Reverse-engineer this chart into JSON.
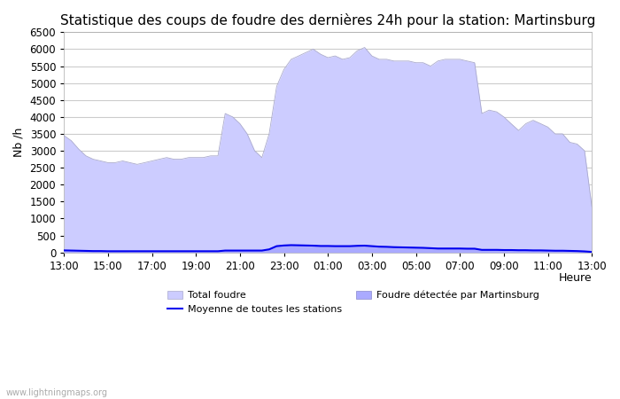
{
  "title": "Statistique des coups de foudre des dernières 24h pour la station: Martinsburg",
  "ylabel": "Nb /h",
  "xlabel": "Heure",
  "watermark": "www.lightningmaps.org",
  "xlim": [
    0,
    24
  ],
  "ylim": [
    0,
    6500
  ],
  "yticks": [
    0,
    500,
    1000,
    1500,
    2000,
    2500,
    3000,
    3500,
    4000,
    4500,
    5000,
    5500,
    6000,
    6500
  ],
  "xtick_labels": [
    "13:00",
    "15:00",
    "17:00",
    "19:00",
    "21:00",
    "23:00",
    "01:00",
    "03:00",
    "05:00",
    "07:00",
    "09:00",
    "11:00",
    "13:00"
  ],
  "xtick_positions": [
    0,
    2,
    4,
    6,
    8,
    10,
    12,
    14,
    16,
    18,
    20,
    22,
    24
  ],
  "total_foudre_color": "#ccccff",
  "total_foudre_edge": "#aaaacc",
  "martinsburg_color": "#aaaaff",
  "martinsburg_edge": "#aaaaff",
  "moyenne_color": "#0000ee",
  "background_color": "#ffffff",
  "grid_color": "#cccccc",
  "title_fontsize": 11,
  "axis_fontsize": 9,
  "tick_fontsize": 8.5,
  "x_total": [
    0,
    0.33,
    0.67,
    1.0,
    1.33,
    1.67,
    2.0,
    2.33,
    2.67,
    3.0,
    3.33,
    3.67,
    4.0,
    4.33,
    4.67,
    5.0,
    5.33,
    5.67,
    6.0,
    6.33,
    6.67,
    7.0,
    7.33,
    7.67,
    8.0,
    8.33,
    8.67,
    9.0,
    9.33,
    9.67,
    10.0,
    10.33,
    10.67,
    11.0,
    11.33,
    11.67,
    12.0,
    12.33,
    12.67,
    13.0,
    13.33,
    13.67,
    14.0,
    14.33,
    14.67,
    15.0,
    15.33,
    15.67,
    16.0,
    16.33,
    16.67,
    17.0,
    17.33,
    17.67,
    18.0,
    18.33,
    18.67,
    19.0,
    19.33,
    19.67,
    20.0,
    20.33,
    20.67,
    21.0,
    21.33,
    21.67,
    22.0,
    22.33,
    22.67,
    23.0,
    23.33,
    23.67,
    24.0
  ],
  "y_total": [
    3450,
    3300,
    3050,
    2850,
    2750,
    2700,
    2650,
    2650,
    2700,
    2650,
    2600,
    2650,
    2700,
    2750,
    2800,
    2750,
    2750,
    2800,
    2800,
    2800,
    2850,
    2850,
    4100,
    4000,
    3800,
    3500,
    3000,
    2800,
    3500,
    4900,
    5400,
    5700,
    5800,
    5900,
    6000,
    5850,
    5750,
    5800,
    5700,
    5750,
    5950,
    6050,
    5800,
    5700,
    5700,
    5650,
    5650,
    5650,
    5600,
    5600,
    5500,
    5650,
    5700,
    5700,
    5700,
    5650,
    5600,
    4100,
    4200,
    4150,
    4000,
    3800,
    3600,
    3800,
    3900,
    3800,
    3700,
    3500,
    3500,
    3250,
    3200,
    3000,
    1350
  ],
  "y_martinsburg": [
    50,
    45,
    40,
    35,
    30,
    30,
    30,
    30,
    30,
    25,
    25,
    25,
    25,
    25,
    25,
    25,
    25,
    25,
    25,
    25,
    25,
    25,
    60,
    60,
    60,
    55,
    55,
    55,
    100,
    200,
    220,
    230,
    225,
    220,
    215,
    200,
    200,
    195,
    195,
    195,
    210,
    215,
    200,
    185,
    180,
    170,
    165,
    160,
    155,
    150,
    140,
    125,
    130,
    130,
    130,
    125,
    125,
    80,
    85,
    80,
    80,
    75,
    70,
    75,
    70,
    65,
    60,
    55,
    55,
    50,
    45,
    35,
    15
  ],
  "y_moyenne": [
    60,
    55,
    50,
    45,
    40,
    40,
    35,
    35,
    35,
    35,
    35,
    35,
    35,
    35,
    35,
    35,
    35,
    35,
    35,
    35,
    35,
    35,
    55,
    55,
    55,
    55,
    55,
    55,
    90,
    185,
    205,
    215,
    210,
    205,
    200,
    190,
    190,
    185,
    185,
    185,
    195,
    200,
    185,
    170,
    165,
    155,
    150,
    145,
    140,
    135,
    125,
    115,
    115,
    115,
    115,
    110,
    110,
    75,
    75,
    75,
    70,
    70,
    65,
    65,
    60,
    60,
    55,
    50,
    50,
    45,
    40,
    30,
    15
  ],
  "legend_total_label": "Total foudre",
  "legend_moyenne_label": "Moyenne de toutes les stations",
  "legend_martinsburg_label": "Foudre détectée par Martinsburg"
}
